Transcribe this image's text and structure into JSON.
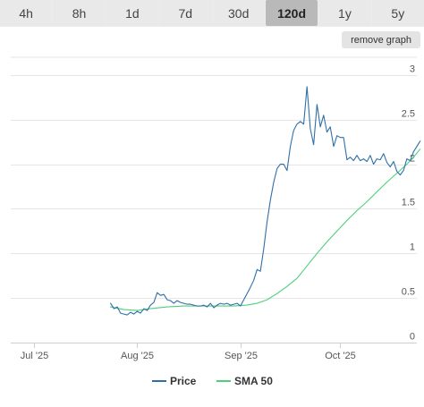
{
  "range_buttons": [
    {
      "label": "4h",
      "active": false
    },
    {
      "label": "8h",
      "active": false
    },
    {
      "label": "1d",
      "active": false
    },
    {
      "label": "7d",
      "active": false
    },
    {
      "label": "30d",
      "active": false
    },
    {
      "label": "120d",
      "active": true
    },
    {
      "label": "1y",
      "active": false
    },
    {
      "label": "5y",
      "active": false
    }
  ],
  "remove_graph_label": "remove graph",
  "colors": {
    "price": "#2f6fa8",
    "sma": "#4cd07a",
    "grid": "#e6e6e6",
    "axis": "#cfcfcf"
  },
  "chart_data": {
    "type": "line",
    "x_axis": {
      "ticks": [
        {
          "label": "Jul '25",
          "date": "2025-07-01"
        },
        {
          "label": "Aug '25",
          "date": "2025-08-01"
        },
        {
          "label": "Sep '25",
          "date": "2025-09-01"
        },
        {
          "label": "Oct '25",
          "date": "2025-10-01"
        }
      ],
      "range": [
        "2025-06-24",
        "2025-10-24"
      ]
    },
    "y_axis": {
      "ticks": [
        {
          "label": "0",
          "value": 0
        },
        {
          "label": "0.5",
          "value": 0.5
        },
        {
          "label": "1",
          "value": 1
        },
        {
          "label": "1.5",
          "value": 1.5
        },
        {
          "label": "2",
          "value": 2
        },
        {
          "label": "2.5",
          "value": 2.5
        },
        {
          "label": "3",
          "value": 3
        }
      ],
      "range": [
        0,
        3.2
      ]
    },
    "grid": true,
    "legend_position": "bottom-center",
    "series": [
      {
        "name": "Price",
        "color": "#2f6fa8",
        "points": [
          [
            "2025-07-24",
            0.44
          ],
          [
            "2025-07-25",
            0.38
          ],
          [
            "2025-07-26",
            0.4
          ],
          [
            "2025-07-27",
            0.33
          ],
          [
            "2025-07-28",
            0.32
          ],
          [
            "2025-07-29",
            0.31
          ],
          [
            "2025-07-30",
            0.34
          ],
          [
            "2025-07-31",
            0.32
          ],
          [
            "2025-08-01",
            0.35
          ],
          [
            "2025-08-02",
            0.33
          ],
          [
            "2025-08-03",
            0.38
          ],
          [
            "2025-08-04",
            0.36
          ],
          [
            "2025-08-05",
            0.42
          ],
          [
            "2025-08-06",
            0.45
          ],
          [
            "2025-08-07",
            0.56
          ],
          [
            "2025-08-08",
            0.53
          ],
          [
            "2025-08-09",
            0.54
          ],
          [
            "2025-08-10",
            0.48
          ],
          [
            "2025-08-11",
            0.47
          ],
          [
            "2025-08-12",
            0.44
          ],
          [
            "2025-08-13",
            0.47
          ],
          [
            "2025-08-14",
            0.45
          ],
          [
            "2025-08-15",
            0.44
          ],
          [
            "2025-08-16",
            0.43
          ],
          [
            "2025-08-17",
            0.43
          ],
          [
            "2025-08-18",
            0.42
          ],
          [
            "2025-08-19",
            0.41
          ],
          [
            "2025-08-20",
            0.41
          ],
          [
            "2025-08-21",
            0.42
          ],
          [
            "2025-08-22",
            0.4
          ],
          [
            "2025-08-23",
            0.44
          ],
          [
            "2025-08-24",
            0.39
          ],
          [
            "2025-08-25",
            0.42
          ],
          [
            "2025-08-26",
            0.44
          ],
          [
            "2025-08-27",
            0.43
          ],
          [
            "2025-08-28",
            0.44
          ],
          [
            "2025-08-29",
            0.42
          ],
          [
            "2025-08-30",
            0.43
          ],
          [
            "2025-08-31",
            0.44
          ],
          [
            "2025-09-01",
            0.41
          ],
          [
            "2025-09-02",
            0.48
          ],
          [
            "2025-09-03",
            0.55
          ],
          [
            "2025-09-04",
            0.62
          ],
          [
            "2025-09-05",
            0.7
          ],
          [
            "2025-09-06",
            0.82
          ],
          [
            "2025-09-07",
            0.8
          ],
          [
            "2025-09-08",
            1.05
          ],
          [
            "2025-09-09",
            1.35
          ],
          [
            "2025-09-10",
            1.6
          ],
          [
            "2025-09-11",
            1.8
          ],
          [
            "2025-09-12",
            1.95
          ],
          [
            "2025-09-13",
            2.0
          ],
          [
            "2025-09-14",
            2.0
          ],
          [
            "2025-09-15",
            1.93
          ],
          [
            "2025-09-16",
            2.2
          ],
          [
            "2025-09-17",
            2.38
          ],
          [
            "2025-09-18",
            2.45
          ],
          [
            "2025-09-19",
            2.48
          ],
          [
            "2025-09-20",
            2.45
          ],
          [
            "2025-09-21",
            2.87
          ],
          [
            "2025-09-22",
            2.4
          ],
          [
            "2025-09-23",
            2.22
          ],
          [
            "2025-09-24",
            2.67
          ],
          [
            "2025-09-25",
            2.42
          ],
          [
            "2025-09-26",
            2.55
          ],
          [
            "2025-09-27",
            2.36
          ],
          [
            "2025-09-28",
            2.42
          ],
          [
            "2025-09-29",
            2.2
          ],
          [
            "2025-09-30",
            2.32
          ],
          [
            "2025-10-01",
            2.3
          ],
          [
            "2025-10-02",
            2.3
          ],
          [
            "2025-10-03",
            2.05
          ],
          [
            "2025-10-04",
            2.08
          ],
          [
            "2025-10-05",
            2.04
          ],
          [
            "2025-10-06",
            2.1
          ],
          [
            "2025-10-07",
            2.04
          ],
          [
            "2025-10-08",
            2.06
          ],
          [
            "2025-10-09",
            2.03
          ],
          [
            "2025-10-10",
            2.1
          ],
          [
            "2025-10-11",
            2.0
          ],
          [
            "2025-10-12",
            2.06
          ],
          [
            "2025-10-13",
            2.05
          ],
          [
            "2025-10-14",
            2.12
          ],
          [
            "2025-10-15",
            2.02
          ],
          [
            "2025-10-16",
            1.97
          ],
          [
            "2025-10-17",
            2.03
          ],
          [
            "2025-10-18",
            1.92
          ],
          [
            "2025-10-19",
            1.88
          ],
          [
            "2025-10-20",
            1.93
          ],
          [
            "2025-10-21",
            2.06
          ],
          [
            "2025-10-22",
            2.04
          ],
          [
            "2025-10-23",
            2.14
          ],
          [
            "2025-10-24",
            2.2
          ],
          [
            "2025-10-25",
            2.26
          ]
        ]
      },
      {
        "name": "SMA 50",
        "color": "#4cd07a",
        "points": [
          [
            "2025-07-24",
            0.4
          ],
          [
            "2025-07-28",
            0.37
          ],
          [
            "2025-08-01",
            0.36
          ],
          [
            "2025-08-05",
            0.38
          ],
          [
            "2025-08-10",
            0.4
          ],
          [
            "2025-08-15",
            0.41
          ],
          [
            "2025-08-20",
            0.41
          ],
          [
            "2025-08-25",
            0.41
          ],
          [
            "2025-08-30",
            0.41
          ],
          [
            "2025-09-03",
            0.42
          ],
          [
            "2025-09-06",
            0.44
          ],
          [
            "2025-09-09",
            0.48
          ],
          [
            "2025-09-12",
            0.55
          ],
          [
            "2025-09-15",
            0.63
          ],
          [
            "2025-09-18",
            0.72
          ],
          [
            "2025-09-21",
            0.86
          ],
          [
            "2025-09-24",
            1.0
          ],
          [
            "2025-09-27",
            1.13
          ],
          [
            "2025-09-30",
            1.25
          ],
          [
            "2025-10-03",
            1.37
          ],
          [
            "2025-10-06",
            1.48
          ],
          [
            "2025-10-09",
            1.58
          ],
          [
            "2025-10-12",
            1.69
          ],
          [
            "2025-10-15",
            1.8
          ],
          [
            "2025-10-18",
            1.9
          ],
          [
            "2025-10-21",
            2.0
          ],
          [
            "2025-10-23",
            2.08
          ],
          [
            "2025-10-25",
            2.17
          ]
        ]
      }
    ]
  }
}
